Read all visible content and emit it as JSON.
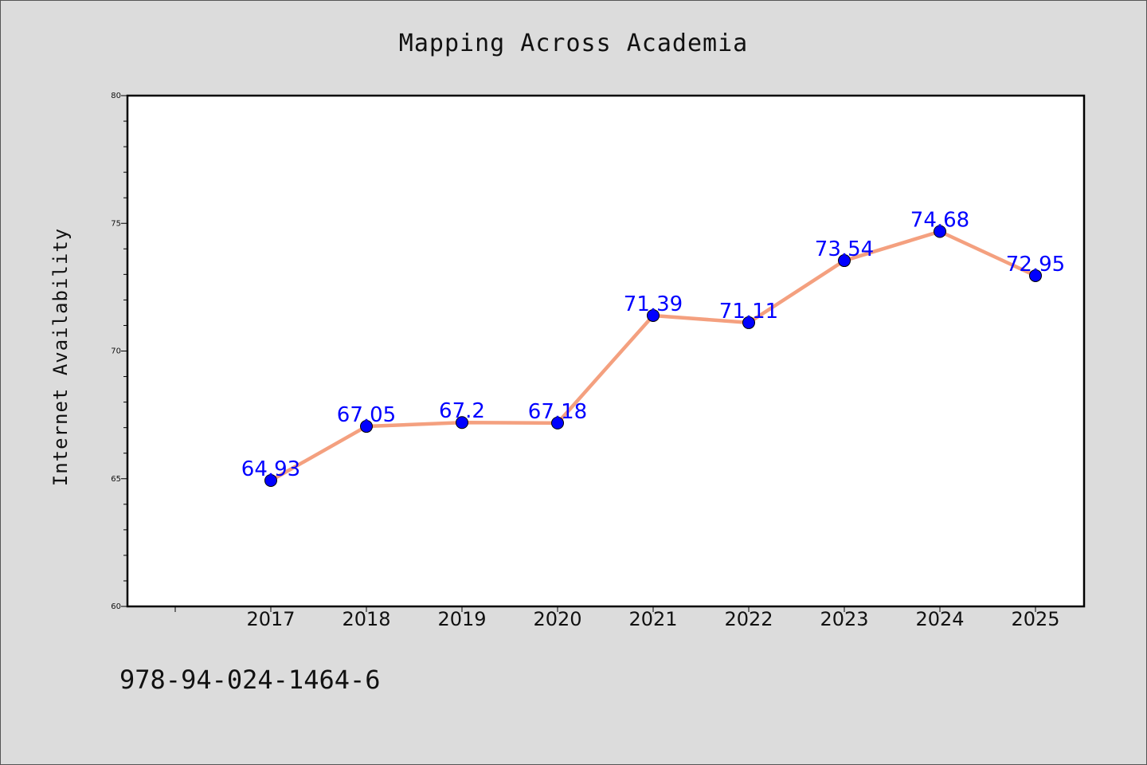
{
  "chart_data": {
    "type": "line",
    "title": "Mapping Across Academia",
    "xlabel": "",
    "ylabel": "Internet Availability",
    "categories": [
      "2017",
      "2018",
      "2019",
      "2020",
      "2021",
      "2022",
      "2023",
      "2024",
      "2025"
    ],
    "series": [
      {
        "values": [
          64.93,
          67.05,
          67.2,
          67.18,
          71.39,
          71.11,
          73.54,
          74.68,
          72.95
        ],
        "data_labels": [
          "64.93",
          "67.05",
          "67.2",
          "67.18",
          "71.39",
          "71.11",
          "73.54",
          "74.68",
          "72.95"
        ]
      }
    ],
    "ylim": [
      60,
      80
    ],
    "yticks": [
      "60",
      "65",
      "70",
      "75",
      "80"
    ],
    "grid": false,
    "legend": "none",
    "colors": {
      "line": "#f4a07f",
      "marker": "#0000ff",
      "data_label": "#0000ff",
      "plot_background": "#ffffff",
      "page_background": "#dcdcdc"
    }
  },
  "footer": {
    "isbn": "978-94-024-1464-6"
  }
}
